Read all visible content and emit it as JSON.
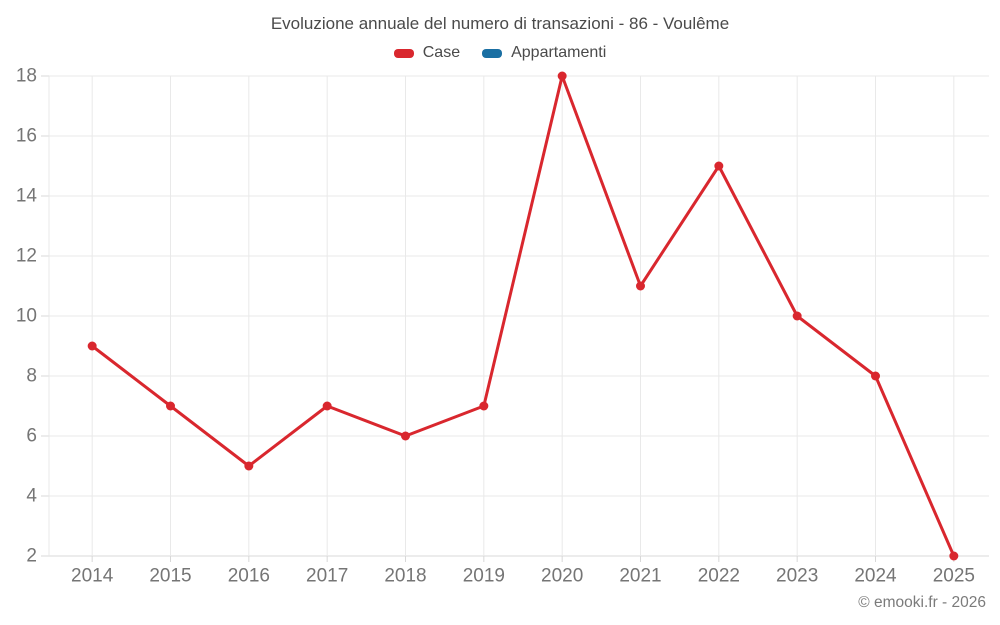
{
  "title": "Evoluzione annuale del numero di transazioni - 86 - Voulême",
  "footer": "© emooki.fr - 2026",
  "chart_data": {
    "type": "line",
    "title": "Evoluzione annuale del numero di transazioni - 86 - Voulême",
    "x": [
      "2014",
      "2015",
      "2016",
      "2017",
      "2018",
      "2019",
      "2020",
      "2021",
      "2022",
      "2023",
      "2024",
      "2025"
    ],
    "series": [
      {
        "name": "Case",
        "color": "#d9272e",
        "values": [
          9,
          7,
          5,
          7,
          6,
          7,
          18,
          11,
          15,
          10,
          8,
          2
        ]
      },
      {
        "name": "Appartamenti",
        "color": "#1a6fa3",
        "values": []
      }
    ],
    "xlabel": "",
    "ylabel": "",
    "ylim": [
      2,
      18
    ],
    "yticks": [
      2,
      4,
      6,
      8,
      10,
      12,
      14,
      16,
      18
    ],
    "grid": true,
    "legend_position": "top",
    "marker": "circle"
  },
  "style": {
    "gridline_color": "#e9e9e9",
    "axis_line_color": "#d8d8d8",
    "axis_text_color": "#757575",
    "title_text_color": "#4a4a4a",
    "background": "#ffffff"
  }
}
